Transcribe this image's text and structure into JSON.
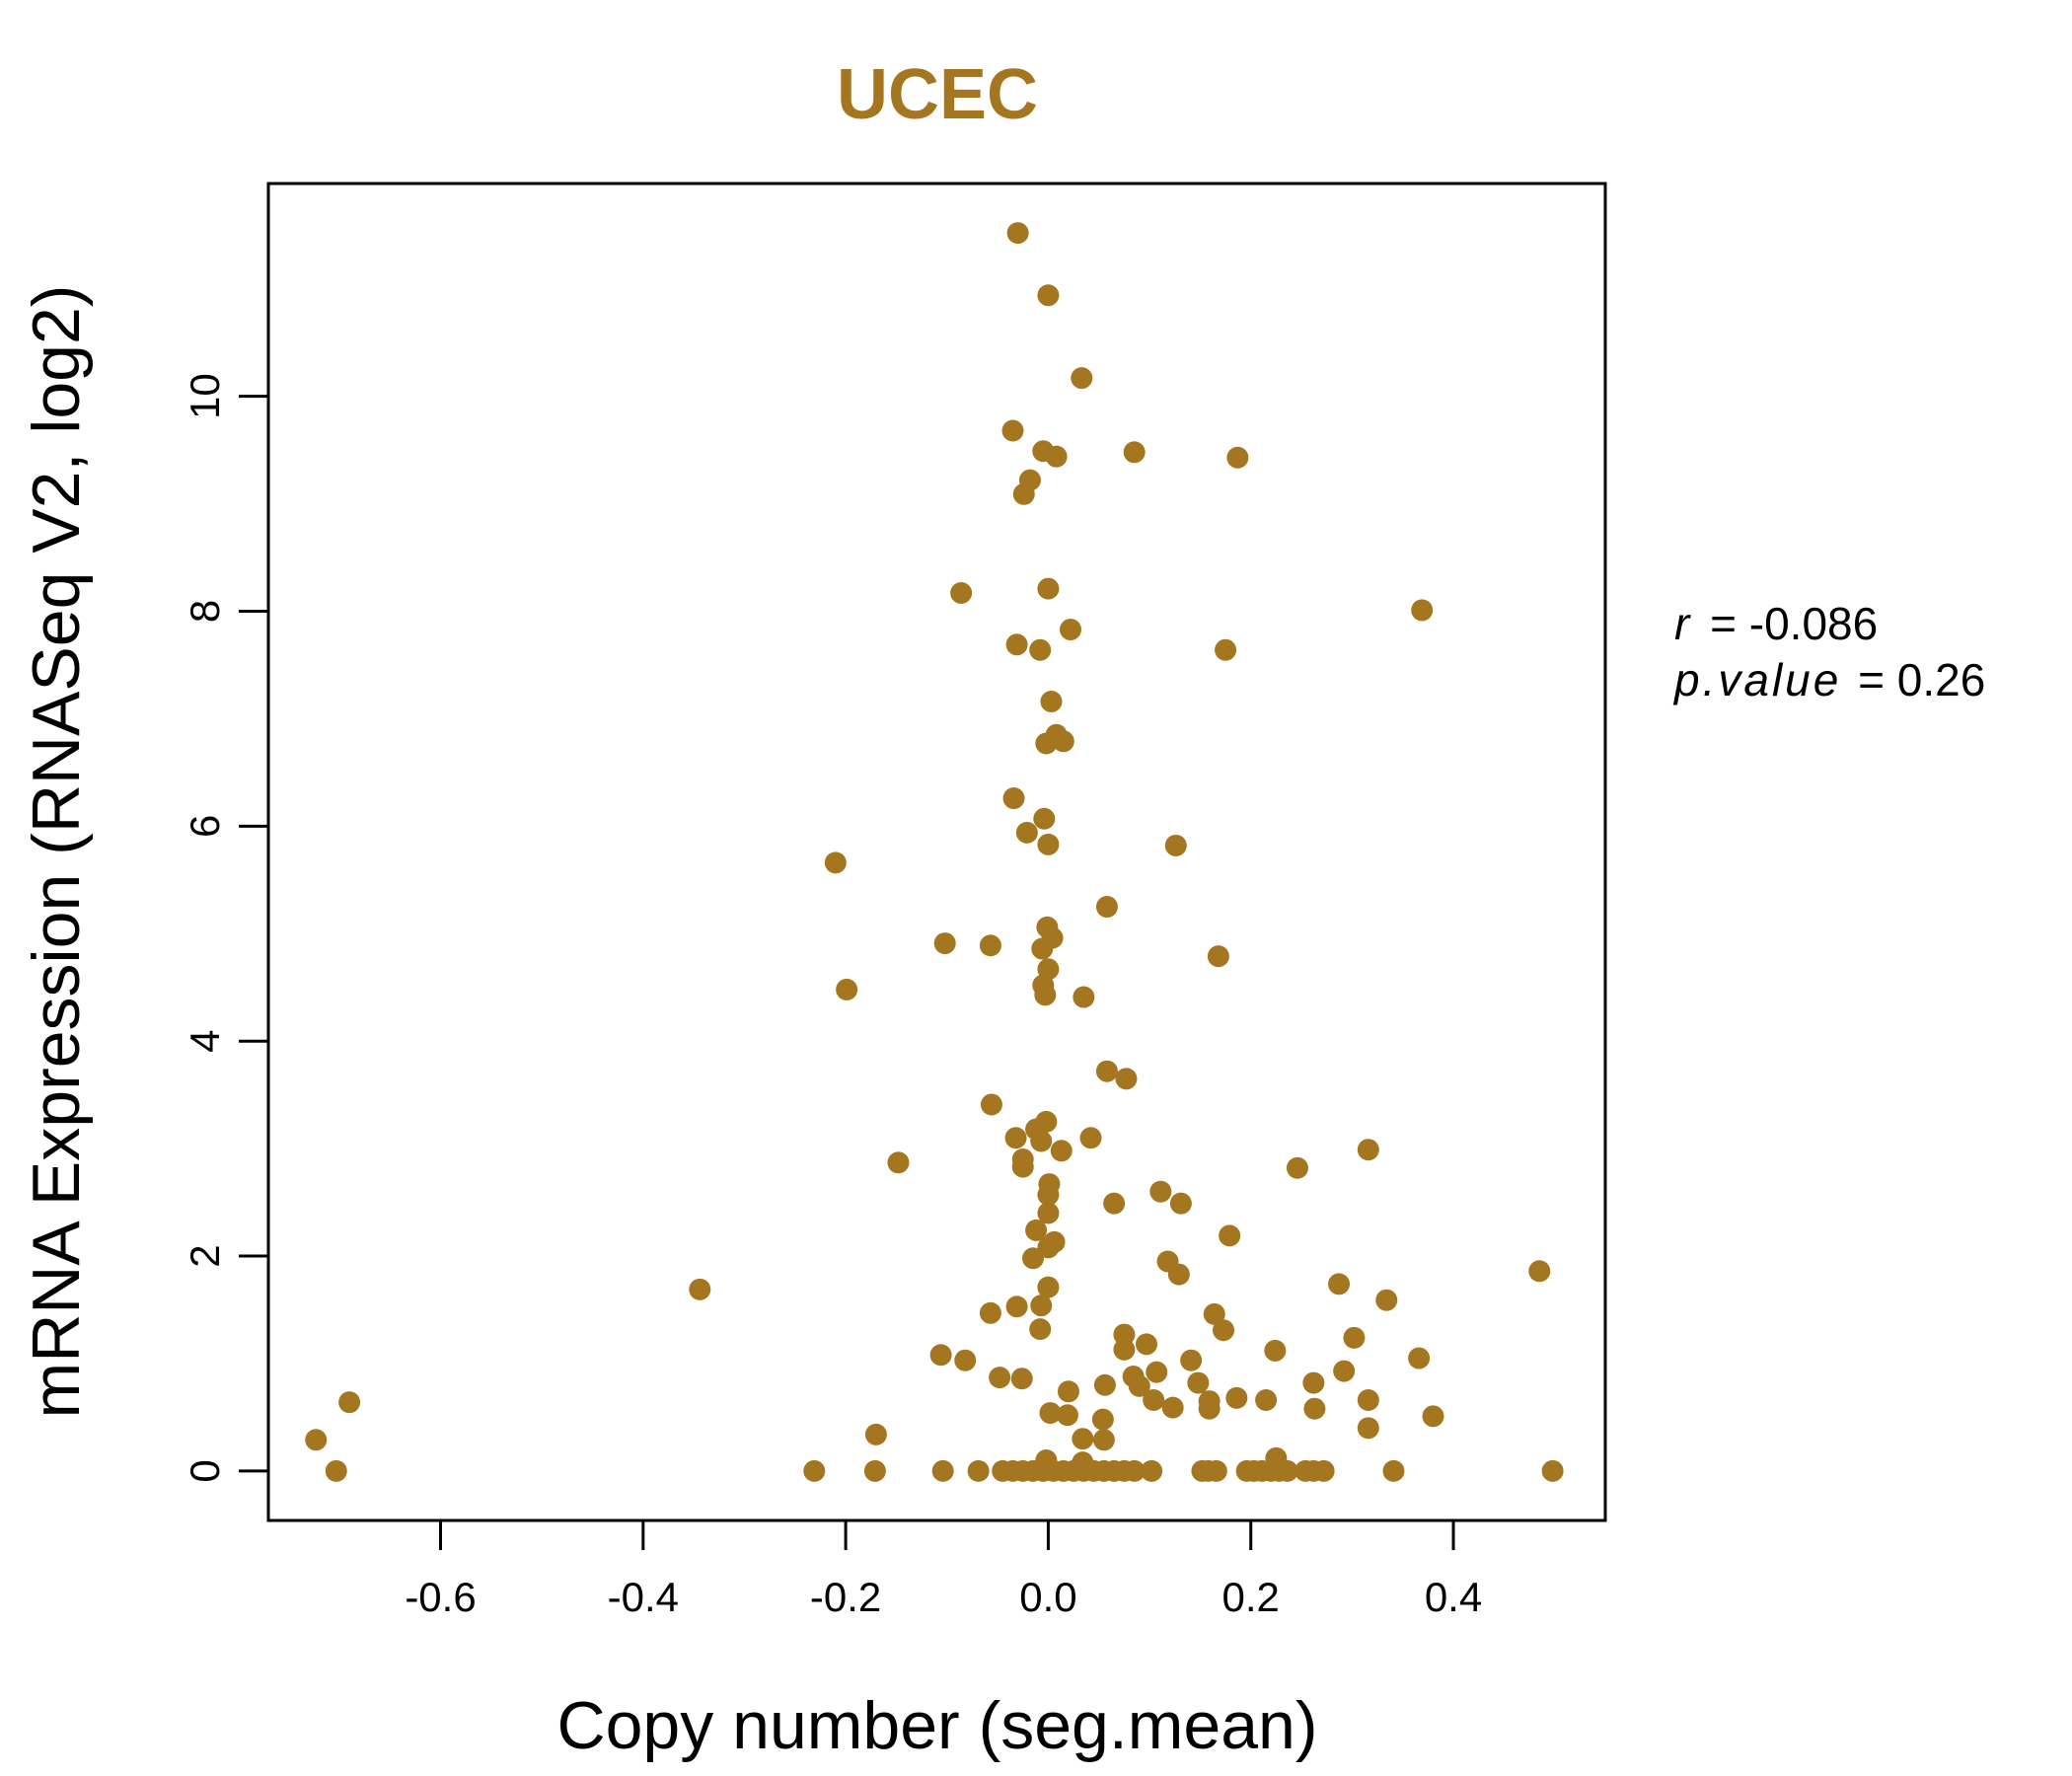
{
  "chart_data": {
    "type": "scatter",
    "title": "UCEC",
    "xlabel": "Copy number (seg.mean)",
    "ylabel": "mRNA Expression (RNASeq V2, log2)",
    "xlim": [
      -0.77,
      0.55
    ],
    "ylim": [
      -0.46,
      11.98
    ],
    "xticks": [
      -0.6,
      -0.4,
      -0.2,
      0.0,
      0.2,
      0.4
    ],
    "xtick_labels": [
      "-0.6",
      "-0.4",
      "-0.2",
      "0.0",
      "0.2",
      "0.4"
    ],
    "yticks": [
      0,
      2,
      4,
      6,
      8,
      10
    ],
    "ytick_labels": [
      "0",
      "2",
      "4",
      "6",
      "8",
      "10"
    ],
    "grid": false,
    "point_color": "#A57620",
    "title_color": "#A57620",
    "stats": {
      "r_symbol": "r",
      "r_value": "-0.086",
      "p_symbol": "p.value",
      "p_value": "0.26"
    },
    "x": [
      -0.03,
      0.0,
      0.033,
      -0.035,
      -0.005,
      0.008,
      0.085,
      0.187,
      -0.018,
      -0.024,
      -0.086,
      0.0,
      0.369,
      -0.031,
      -0.008,
      0.022,
      0.175,
      0.003,
      0.008,
      -0.002,
      0.015,
      -0.034,
      -0.004,
      -0.021,
      0.126,
      0.0,
      -0.21,
      0.058,
      -0.001,
      0.004,
      -0.102,
      -0.057,
      -0.006,
      0.168,
      0.0,
      -0.005,
      -0.199,
      -0.003,
      0.035,
      0.058,
      0.077,
      -0.056,
      -0.002,
      -0.012,
      -0.032,
      0.042,
      -0.007,
      0.013,
      0.316,
      -0.025,
      -0.025,
      -0.148,
      0.246,
      0.001,
      0.111,
      0.0,
      0.065,
      0.131,
      0.0,
      -0.012,
      0.006,
      0.0,
      -0.015,
      0.179,
      0.118,
      0.129,
      0.287,
      0.485,
      0.0,
      -0.344,
      -0.007,
      -0.031,
      -0.057,
      0.164,
      0.334,
      -0.008,
      0.173,
      0.075,
      0.302,
      0.097,
      0.075,
      0.224,
      -0.106,
      -0.082,
      0.141,
      0.366,
      0.107,
      0.292,
      -0.048,
      -0.026,
      0.084,
      0.148,
      0.262,
      0.056,
      0.09,
      0.02,
      0.186,
      0.104,
      0.215,
      0.316,
      -0.69,
      0.159,
      0.159,
      0.002,
      0.123,
      0.263,
      0.019,
      0.38,
      0.054,
      0.316,
      -0.17,
      0.034,
      0.055,
      -0.723,
      -0.703,
      -0.231,
      -0.171,
      -0.104,
      -0.069,
      -0.045,
      -0.035,
      -0.025,
      -0.015,
      -0.005,
      0.005,
      0.015,
      0.025,
      0.035,
      0.045,
      0.055,
      0.065,
      0.075,
      0.085,
      0.102,
      0.152,
      0.158,
      0.166,
      0.196,
      0.203,
      0.211,
      0.22,
      0.228,
      0.236,
      0.254,
      0.262,
      0.272,
      0.341,
      0.498,
      -0.002,
      0.225,
      0.034
    ],
    "y": [
      11.52,
      10.94,
      10.17,
      9.68,
      9.49,
      9.44,
      9.48,
      9.43,
      9.22,
      9.09,
      8.17,
      8.21,
      8.01,
      7.69,
      7.64,
      7.83,
      7.64,
      7.16,
      6.85,
      6.77,
      6.79,
      6.26,
      6.07,
      5.94,
      5.82,
      5.83,
      5.66,
      5.25,
      5.06,
      4.96,
      4.91,
      4.89,
      4.86,
      4.79,
      4.67,
      4.52,
      4.48,
      4.43,
      4.41,
      3.72,
      3.65,
      3.41,
      3.25,
      3.18,
      3.1,
      3.1,
      3.07,
      2.98,
      2.99,
      2.9,
      2.83,
      2.87,
      2.82,
      2.67,
      2.6,
      2.57,
      2.49,
      2.49,
      2.4,
      2.24,
      2.13,
      2.08,
      1.98,
      2.19,
      1.95,
      1.83,
      1.74,
      1.86,
      1.71,
      1.69,
      1.54,
      1.53,
      1.47,
      1.46,
      1.59,
      1.32,
      1.31,
      1.27,
      1.24,
      1.18,
      1.13,
      1.12,
      1.08,
      1.03,
      1.03,
      1.05,
      0.92,
      0.93,
      0.87,
      0.86,
      0.88,
      0.82,
      0.82,
      0.8,
      0.79,
      0.74,
      0.68,
      0.66,
      0.66,
      0.66,
      0.64,
      0.65,
      0.58,
      0.54,
      0.59,
      0.58,
      0.52,
      0.51,
      0.48,
      0.4,
      0.34,
      0.3,
      0.29,
      0.29,
      0.0,
      0.0,
      0.0,
      0.0,
      0.0,
      0.0,
      0.0,
      0.0,
      0.0,
      0.0,
      0.0,
      0.0,
      0.0,
      0.0,
      0.0,
      0.0,
      0.0,
      0.0,
      0.0,
      0.0,
      0.0,
      0.0,
      0.0,
      0.0,
      0.0,
      0.0,
      0.0,
      0.0,
      0.0,
      0.0,
      0.0,
      0.0,
      0.0,
      0.0,
      0.1,
      0.12,
      0.08
    ]
  }
}
